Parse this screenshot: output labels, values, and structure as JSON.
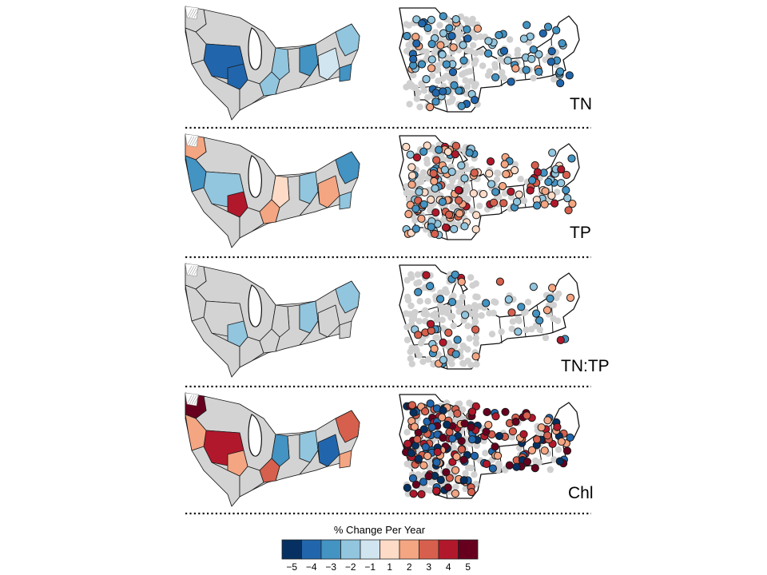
{
  "rows": [
    {
      "label": "TN",
      "regions": [
        {
          "value": 0
        },
        {
          "value": -4
        },
        {
          "value": 0
        },
        {
          "value": -4
        },
        {
          "value": -2
        },
        {
          "value": -2
        },
        {
          "value": -3
        },
        {
          "value": -1
        },
        {
          "value": -2
        },
        {
          "value": -3
        }
      ],
      "sites_dominant": -3,
      "sites_mix": [
        -3,
        -4,
        -2,
        2,
        -3,
        -2
      ]
    },
    {
      "label": "TP",
      "regions": [
        {
          "value": 2
        },
        {
          "value": -2
        },
        {
          "value": -3
        },
        {
          "value": 4
        },
        {
          "value": 1
        },
        {
          "value": 2
        },
        {
          "value": -2
        },
        {
          "value": 2
        },
        {
          "value": -3
        },
        {
          "value": -2
        }
      ],
      "sites_dominant": 3,
      "sites_mix": [
        3,
        -3,
        2,
        4,
        -2,
        1
      ]
    },
    {
      "label": "TN:TP",
      "regions": [
        {
          "value": 0
        },
        {
          "value": 0
        },
        {
          "value": 0
        },
        {
          "value": -2
        },
        {
          "value": 0
        },
        {
          "value": 0
        },
        {
          "value": -2
        },
        {
          "value": 0
        },
        {
          "value": -2
        },
        {
          "value": 0
        }
      ],
      "sites_dominant": -3,
      "sites_mix": [
        -3,
        -2,
        3,
        4,
        -3,
        2
      ]
    },
    {
      "label": "Chl",
      "regions": [
        {
          "value": 5
        },
        {
          "value": 4
        },
        {
          "value": 2
        },
        {
          "value": 2
        },
        {
          "value": -3
        },
        {
          "value": 3
        },
        {
          "value": -2
        },
        {
          "value": -4
        },
        {
          "value": 3
        },
        {
          "value": 2
        }
      ],
      "sites_dominant": 4,
      "sites_mix": [
        4,
        5,
        -5,
        -4,
        3,
        2
      ]
    }
  ],
  "legend": {
    "title": "% Change Per Year",
    "ticks": [
      "−5",
      "−4",
      "−3",
      "−2",
      "−1",
      "1",
      "2",
      "3",
      "4",
      "5"
    ],
    "colors": [
      "#053061",
      "#2166ac",
      "#4393c3",
      "#92c5de",
      "#d1e5f0",
      "#fddbc7",
      "#f4a582",
      "#d6604d",
      "#b2182b",
      "#67001f"
    ],
    "neutral_color": "#d3d3d3"
  }
}
